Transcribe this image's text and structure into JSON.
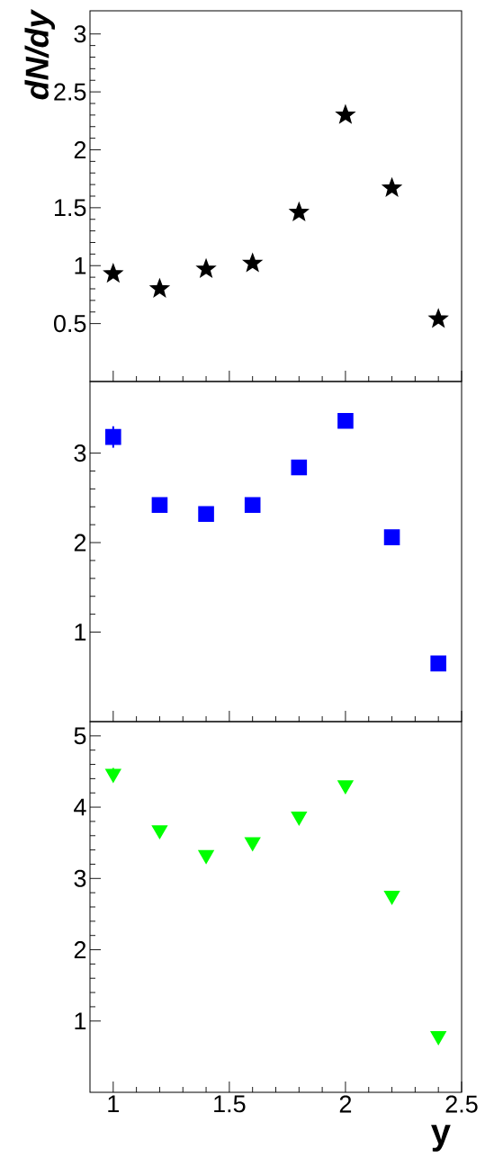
{
  "chart_data": [
    {
      "type": "scatter",
      "ylabel": "dN/dy",
      "x": [
        1,
        1.2,
        1.4,
        1.6,
        1.8,
        2,
        2.2,
        2.4
      ],
      "marker": "star",
      "series": [
        {
          "color": "#000000",
          "values": [
            0.93,
            0.8,
            0.97,
            1.02,
            1.46,
            2.3,
            1.67,
            0.54
          ]
        }
      ],
      "xlim": [
        0.9,
        2.5
      ],
      "xticks": [
        1,
        1.5,
        2,
        2.5
      ],
      "ylim": [
        0,
        3.2
      ],
      "yticks": [
        0.5,
        1,
        1.5,
        2,
        2.5,
        3
      ],
      "tick_labels": "y"
    },
    {
      "type": "scatter",
      "x": [
        1,
        1.2,
        1.4,
        1.6,
        1.8,
        2,
        2.2,
        2.4
      ],
      "marker": "square",
      "series": [
        {
          "color": "#0000ff",
          "values": [
            3.18,
            2.42,
            2.32,
            2.42,
            2.84,
            3.36,
            2.06,
            0.65
          ],
          "errors": [
            0.12,
            null,
            null,
            null,
            null,
            null,
            null,
            null
          ]
        }
      ],
      "xlim": [
        0.9,
        2.5
      ],
      "xticks": [
        1,
        1.5,
        2,
        2.5
      ],
      "ylim": [
        0,
        3.8
      ],
      "yticks": [
        1,
        2,
        3
      ],
      "tick_labels": "y"
    },
    {
      "type": "scatter",
      "xlabel": "y",
      "x": [
        1,
        1.2,
        1.4,
        1.6,
        1.8,
        2,
        2.2,
        2.4
      ],
      "marker": "triangle",
      "series": [
        {
          "color": "#00ff00",
          "values": [
            4.47,
            3.68,
            3.33,
            3.51,
            3.87,
            4.31,
            2.76,
            0.79
          ],
          "errors": [
            0.08,
            null,
            null,
            null,
            null,
            null,
            null,
            null
          ]
        }
      ],
      "xlim": [
        0.9,
        2.5
      ],
      "xticks": [
        1,
        1.5,
        2,
        2.5
      ],
      "ylim": [
        0,
        5.2
      ],
      "yticks": [
        1,
        2,
        3,
        4,
        5
      ]
    }
  ]
}
